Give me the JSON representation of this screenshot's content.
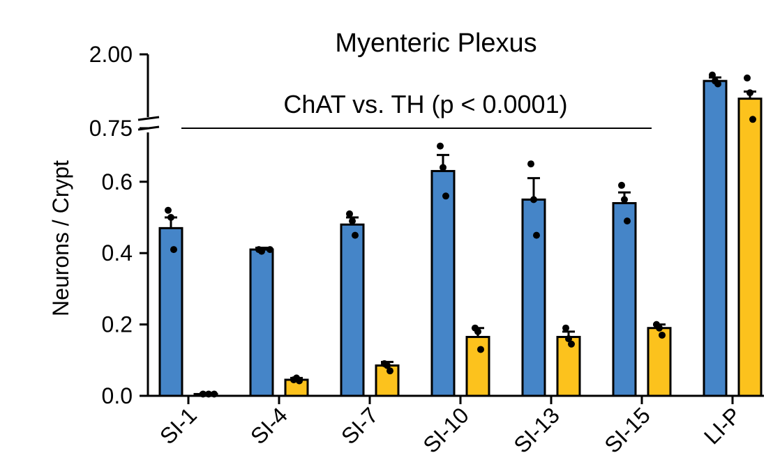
{
  "chart_data": {
    "type": "bar",
    "title": "Myenteric Plexus",
    "ylabel": "Neurons / Crypt",
    "xlabel": "",
    "categories": [
      "SI-1",
      "SI-4",
      "SI-7",
      "SI-10",
      "SI-13",
      "SI-15",
      "LI-P"
    ],
    "y_axis": {
      "broken": true,
      "lower_range": [
        0,
        0.75
      ],
      "upper_range": [
        0.75,
        2.0
      ],
      "tick_values": [
        0.0,
        0.2,
        0.4,
        0.6,
        0.75,
        2.0
      ],
      "tick_labels": [
        "0.0",
        "0.2",
        "0.4",
        "0.6",
        "0.75",
        "2.00"
      ]
    },
    "series": [
      {
        "name": "ChAT",
        "color": "#4585c8",
        "values": [
          0.47,
          0.41,
          0.48,
          0.63,
          0.55,
          0.54,
          1.55
        ],
        "errors": [
          0.03,
          0.005,
          0.02,
          0.045,
          0.06,
          0.03,
          0.06
        ],
        "points": [
          [
            0.52,
            0.5,
            0.41
          ],
          [
            0.41,
            0.405,
            0.41
          ],
          [
            0.51,
            0.49,
            0.45
          ],
          [
            0.7,
            0.64,
            0.56
          ],
          [
            0.65,
            0.55,
            0.45
          ],
          [
            0.59,
            0.55,
            0.49
          ],
          [
            1.65,
            1.55,
            1.5
          ]
        ]
      },
      {
        "name": "TH",
        "color": "#fcc21d",
        "values": [
          0.005,
          0.045,
          0.085,
          0.165,
          0.165,
          0.19,
          1.25
        ],
        "errors": [
          0.002,
          0.005,
          0.01,
          0.025,
          0.015,
          0.01,
          0.12
        ],
        "points": [
          [
            0.005,
            0.005,
            0.005
          ],
          [
            0.045,
            0.05,
            0.042
          ],
          [
            0.09,
            0.085,
            0.07
          ],
          [
            0.19,
            0.18,
            0.13
          ],
          [
            0.19,
            0.16,
            0.145
          ],
          [
            0.2,
            0.19,
            0.17
          ],
          [
            1.6,
            1.35,
            0.9
          ]
        ]
      }
    ],
    "annotation": {
      "text": "ChAT vs. TH (p < 0.0001)",
      "span": [
        "SI-1",
        "SI-15"
      ]
    }
  }
}
